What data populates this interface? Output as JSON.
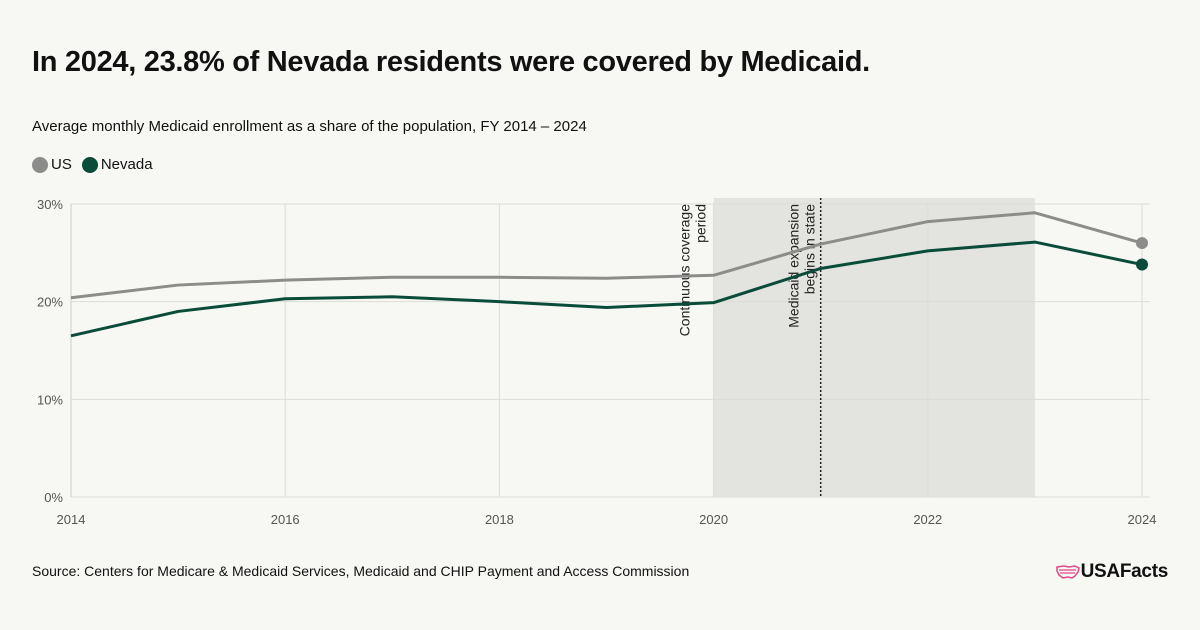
{
  "header": {
    "title": "In 2024, 23.8% of Nevada residents were covered by Medicaid.",
    "subtitle": "Average monthly Medicaid enrollment as a share of the population, FY 2014 – 2024"
  },
  "legend": [
    {
      "label": "US",
      "color": "#8c8c8a"
    },
    {
      "label": "Nevada",
      "color": "#0b4b3a"
    }
  ],
  "chart_data": {
    "type": "line",
    "x": [
      2014,
      2015,
      2016,
      2017,
      2018,
      2019,
      2020,
      2021,
      2022,
      2023,
      2024
    ],
    "series": [
      {
        "name": "US",
        "color": "#8c8c8a",
        "values": [
          20.4,
          21.7,
          22.2,
          22.5,
          22.5,
          22.4,
          22.7,
          25.9,
          28.2,
          29.1,
          26.0
        ]
      },
      {
        "name": "Nevada",
        "color": "#0b4b3a",
        "values": [
          16.5,
          19.0,
          20.3,
          20.5,
          20.0,
          19.4,
          19.9,
          23.4,
          25.2,
          26.1,
          23.8
        ]
      }
    ],
    "xticks": [
      "2014",
      "2016",
      "2018",
      "2020",
      "2022",
      "2024"
    ],
    "yticks": [
      "0%",
      "10%",
      "20%",
      "30%"
    ],
    "ylim": [
      0,
      30
    ],
    "xlim": [
      2014,
      2024
    ],
    "grid": true,
    "legend_position": "top-left",
    "shaded_region": {
      "x_start": 2020,
      "x_end": 2023,
      "label": "Continuous coverage period",
      "label_lines": [
        "Continuous coverage",
        "period"
      ]
    },
    "vertical_marker": {
      "x": 2021,
      "label": "Medicaid expansion begins in state",
      "label_lines": [
        "Medicaid expansion",
        "begins in state"
      ]
    }
  },
  "footer": {
    "source": "Source: Centers for Medicare & Medicaid Services, Medicaid and CHIP Payment and Access Commission",
    "logo_text": "USAFacts",
    "logo_icon": "us-map-flag-icon"
  }
}
